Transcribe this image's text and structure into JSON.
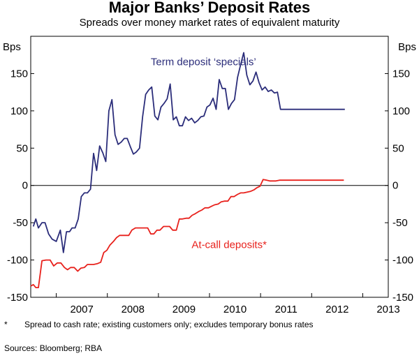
{
  "chart_data": {
    "type": "line",
    "title": "Major Banks’ Deposit Rates",
    "subtitle": "Spreads over money market rates of equivalent maturity",
    "ylabel_left": "Bps",
    "ylabel_right": "Bps",
    "ylim": [
      -150,
      200
    ],
    "yticks": [
      -150,
      -100,
      -50,
      0,
      50,
      100,
      150
    ],
    "x_categories": [
      "2007",
      "2008",
      "2009",
      "2010",
      "2011",
      "2012",
      "2013"
    ],
    "xlim": [
      2006.5,
      2013.5
    ],
    "grid": "zero-line only",
    "series": [
      {
        "name": "Term deposit ‘specials’",
        "color": "#2b2d7a",
        "x": [
          2006.55,
          2006.6,
          2006.65,
          2006.72,
          2006.78,
          2006.85,
          2006.92,
          2007.0,
          2007.08,
          2007.14,
          2007.2,
          2007.26,
          2007.31,
          2007.37,
          2007.43,
          2007.49,
          2007.55,
          2007.61,
          2007.67,
          2007.73,
          2007.79,
          2007.85,
          2007.91,
          2007.97,
          2008.03,
          2008.09,
          2008.15,
          2008.21,
          2008.27,
          2008.33,
          2008.39,
          2008.45,
          2008.51,
          2008.57,
          2008.63,
          2008.69,
          2008.75,
          2008.81,
          2008.87,
          2008.93,
          2008.99,
          2009.05,
          2009.11,
          2009.17,
          2009.23,
          2009.29,
          2009.35,
          2009.41,
          2009.47,
          2009.53,
          2009.59,
          2009.65,
          2009.71,
          2009.77,
          2009.83,
          2009.89,
          2009.95,
          2010.01,
          2010.07,
          2010.13,
          2010.19,
          2010.25,
          2010.31,
          2010.37,
          2010.43,
          2010.49,
          2010.55,
          2010.61,
          2010.67,
          2010.73,
          2010.79,
          2010.85,
          2010.91,
          2010.97,
          2011.03,
          2011.09,
          2011.15,
          2011.21,
          2011.27,
          2011.33,
          2011.39,
          2011.45,
          2011.51,
          2011.57,
          2011.63,
          2011.69,
          2011.75,
          2011.81,
          2011.87,
          2011.93,
          2011.99,
          2012.05,
          2012.11,
          2012.17,
          2012.23,
          2012.29,
          2012.35,
          2012.41,
          2012.47,
          2012.53,
          2012.59,
          2012.65
        ],
        "values": [
          -55,
          -45,
          -57,
          -50,
          -50,
          -65,
          -72,
          -75,
          -60,
          -90,
          -62,
          -62,
          -57,
          -57,
          -45,
          -15,
          -10,
          -10,
          -5,
          43,
          20,
          53,
          44,
          32,
          100,
          115,
          68,
          55,
          58,
          63,
          63,
          52,
          42,
          45,
          50,
          92,
          122,
          128,
          132,
          93,
          88,
          105,
          110,
          116,
          136,
          88,
          92,
          80,
          80,
          92,
          87,
          90,
          84,
          87,
          92,
          93,
          105,
          108,
          117,
          102,
          142,
          130,
          130,
          102,
          110,
          115,
          145,
          162,
          178,
          148,
          135,
          140,
          152,
          138,
          128,
          132,
          126,
          128,
          124,
          125,
          102,
          102,
          102,
          102,
          102,
          102,
          102,
          102,
          102,
          102,
          102,
          102,
          102,
          102,
          102,
          102,
          102,
          102,
          102,
          102,
          102,
          102
        ],
        "label": "Term deposit ‘specials’"
      },
      {
        "name": "At-call deposits*",
        "color": "#e8211c",
        "x": [
          2006.5,
          2006.55,
          2006.6,
          2006.65,
          2006.72,
          2006.8,
          2006.88,
          2006.95,
          2007.02,
          2007.09,
          2007.16,
          2007.22,
          2007.28,
          2007.35,
          2007.42,
          2007.48,
          2007.55,
          2007.61,
          2007.67,
          2007.73,
          2007.8,
          2007.87,
          2007.93,
          2007.99,
          2008.05,
          2008.12,
          2008.18,
          2008.24,
          2008.3,
          2008.36,
          2008.42,
          2008.48,
          2008.55,
          2008.61,
          2008.67,
          2008.73,
          2008.79,
          2008.85,
          2008.91,
          2008.97,
          2009.03,
          2009.1,
          2009.16,
          2009.22,
          2009.28,
          2009.35,
          2009.41,
          2009.47,
          2009.54,
          2009.6,
          2009.66,
          2009.72,
          2009.79,
          2009.85,
          2009.91,
          2009.98,
          2010.04,
          2010.1,
          2010.17,
          2010.23,
          2010.29,
          2010.36,
          2010.42,
          2010.48,
          2010.55,
          2010.61,
          2010.67,
          2010.74,
          2010.8,
          2010.87,
          2010.93,
          2010.99,
          2011.05,
          2011.12,
          2011.18,
          2011.24,
          2011.3,
          2011.37,
          2011.43,
          2011.49,
          2011.56,
          2011.62,
          2011.68,
          2011.74,
          2011.81,
          2011.87,
          2011.93,
          2012.0,
          2012.06,
          2012.12,
          2012.19,
          2012.25,
          2012.31,
          2012.38,
          2012.44,
          2012.5,
          2012.57,
          2012.63
        ],
        "values": [
          -135,
          -133,
          -137,
          -137,
          -101,
          -100,
          -100,
          -108,
          -104,
          -104,
          -110,
          -113,
          -110,
          -110,
          -115,
          -111,
          -110,
          -106,
          -106,
          -106,
          -105,
          -103,
          -90,
          -87,
          -80,
          -75,
          -70,
          -67,
          -67,
          -67,
          -67,
          -60,
          -57,
          -57,
          -57,
          -57,
          -57,
          -65,
          -65,
          -60,
          -60,
          -55,
          -55,
          -55,
          -60,
          -60,
          -45,
          -45,
          -44,
          -44,
          -40,
          -38,
          -35,
          -33,
          -30,
          -30,
          -28,
          -26,
          -25,
          -22,
          -21,
          -21,
          -15,
          -15,
          -12,
          -10,
          -10,
          -9,
          -8,
          -6,
          -3,
          -1,
          8,
          7,
          6,
          6,
          6,
          7,
          7,
          7,
          7,
          7,
          7,
          7,
          7,
          7,
          7,
          7,
          7,
          7,
          7,
          7,
          7,
          7,
          7,
          7,
          7,
          7
        ],
        "label": "At-call deposits*"
      }
    ]
  },
  "notes": {
    "star": "*",
    "footnote": "Spread to cash rate; existing customers only; excludes temporary bonus rates",
    "sources": "Sources: Bloomberg; RBA"
  }
}
